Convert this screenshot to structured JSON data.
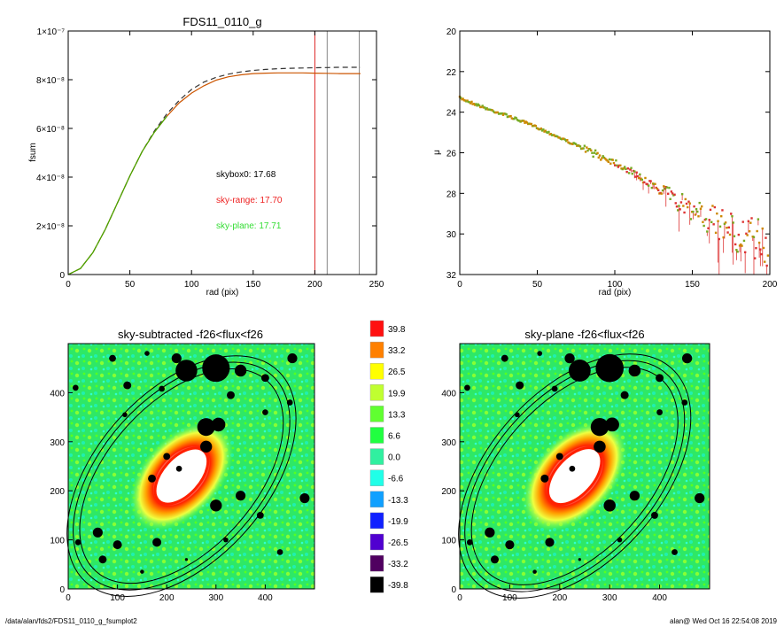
{
  "footer": {
    "path": "/data/alan/fds2/FDS11_0110_g_fsumplot2",
    "stamp": "alan@  Wed Oct 16 22:54:08 2019"
  },
  "chart_data": [
    {
      "type": "line",
      "title": "FDS11_0110_g",
      "xlabel": "rad (pix)",
      "ylabel": "fsum",
      "xlim": [
        0,
        250
      ],
      "ylim": [
        0,
        1e-07
      ],
      "xticks": [
        "0",
        "50",
        "100",
        "150",
        "200",
        "250"
      ],
      "yticks": [
        "0",
        "2×10⁻⁸",
        "4×10⁻⁸",
        "6×10⁻⁸",
        "8×10⁻⁸",
        "1×10⁻⁷"
      ],
      "series": [
        {
          "style": "dashed",
          "color": "#333333",
          "x": [
            0,
            10,
            20,
            30,
            40,
            50,
            60,
            70,
            80,
            90,
            100,
            110,
            120,
            130,
            140,
            150,
            160,
            170,
            180,
            190,
            200,
            210,
            220,
            237
          ],
          "y": [
            0,
            2.5e-09,
            9e-09,
            1.85e-08,
            2.95e-08,
            4.05e-08,
            5.05e-08,
            5.9e-08,
            6.6e-08,
            7.15e-08,
            7.6e-08,
            7.9e-08,
            8.1e-08,
            8.23e-08,
            8.32e-08,
            8.38e-08,
            8.42e-08,
            8.45e-08,
            8.47e-08,
            8.48e-08,
            8.49e-08,
            8.5e-08,
            8.51e-08,
            8.51e-08
          ]
        },
        {
          "style": "solid",
          "color": "#cc5500",
          "x": [
            0,
            10,
            20,
            30,
            40,
            50,
            60,
            70,
            80,
            90,
            100,
            110,
            120,
            130,
            140,
            150,
            160,
            170,
            180,
            190,
            200,
            210,
            220,
            237
          ],
          "y": [
            0,
            2.5e-09,
            9e-09,
            1.85e-08,
            2.95e-08,
            4.05e-08,
            5.05e-08,
            5.85e-08,
            6.5e-08,
            7.05e-08,
            7.45e-08,
            7.75e-08,
            7.98e-08,
            8.12e-08,
            8.2e-08,
            8.25e-08,
            8.27e-08,
            8.28e-08,
            8.28e-08,
            8.28e-08,
            8.27e-08,
            8.26e-08,
            8.25e-08,
            8.25e-08
          ]
        },
        {
          "style": "solid",
          "color": "#44aa00",
          "x": [
            0,
            10,
            20,
            30,
            40,
            50,
            60,
            70,
            80
          ],
          "y": [
            0,
            2.5e-09,
            9e-09,
            1.85e-08,
            2.95e-08,
            4.05e-08,
            5.05e-08,
            5.85e-08,
            6.5e-08
          ]
        }
      ],
      "vlines": [
        {
          "x": 200,
          "color": "#dd2222"
        },
        {
          "x": 210,
          "color": "#888888"
        },
        {
          "x": 236,
          "color": "#888888"
        }
      ],
      "annotations": [
        {
          "text": "skybox0: 17.68",
          "color": "#000000"
        },
        {
          "text": "sky-range: 17.70",
          "color": "#ee2222"
        },
        {
          "text": "sky-plane: 17.71",
          "color": "#33dd33"
        }
      ]
    },
    {
      "type": "scatter",
      "title": "",
      "xlabel": "rad (pix)",
      "ylabel": "μ",
      "xlim": [
        0,
        200
      ],
      "ylim": [
        32,
        20
      ],
      "xticks": [
        "0",
        "50",
        "100",
        "150",
        "200"
      ],
      "yticks": [
        "20",
        "22",
        "24",
        "26",
        "28",
        "30",
        "32"
      ],
      "profile": {
        "x": [
          0,
          10,
          20,
          30,
          40,
          50,
          60,
          70,
          80,
          90,
          100,
          110,
          120,
          130,
          140,
          150,
          160,
          170,
          180,
          190,
          200
        ],
        "y": [
          23.3,
          23.6,
          23.9,
          24.15,
          24.45,
          24.75,
          25.1,
          25.45,
          25.8,
          26.15,
          26.45,
          26.9,
          27.4,
          27.9,
          28.35,
          28.8,
          29.2,
          29.6,
          30.0,
          30.3,
          30.6
        ]
      },
      "point_colors": [
        "#77aa22",
        "#cc8800",
        "#dd3333"
      ]
    },
    {
      "type": "heatmap",
      "title": "sky-subtracted -f26<flux<f26",
      "xlim": [
        0,
        500
      ],
      "ylim": [
        0,
        500
      ],
      "xticks": [
        "0",
        "100",
        "200",
        "300",
        "400"
      ],
      "yticks": [
        "0",
        "100",
        "200",
        "300",
        "400"
      ]
    },
    {
      "type": "heatmap",
      "title": "sky-plane -f26<flux<f26",
      "xlim": [
        0,
        500
      ],
      "ylim": [
        0,
        500
      ],
      "xticks": [
        "0",
        "100",
        "200",
        "300",
        "400"
      ],
      "yticks": [
        "0",
        "100",
        "200",
        "300",
        "400"
      ]
    }
  ],
  "colorbar": {
    "labels": [
      "39.8",
      "33.2",
      "26.5",
      "19.9",
      "13.3",
      "6.6",
      "0.0",
      "-6.6",
      "-13.3",
      "-19.9",
      "-26.5",
      "-33.2",
      "-39.8"
    ],
    "colors": [
      "#ff1010",
      "#ff8000",
      "#ffff00",
      "#c0ff30",
      "#60ff30",
      "#20ff40",
      "#30f0a0",
      "#20ffe8",
      "#10a0ff",
      "#1020ff",
      "#5000d0",
      "#500060",
      "#000000"
    ]
  }
}
